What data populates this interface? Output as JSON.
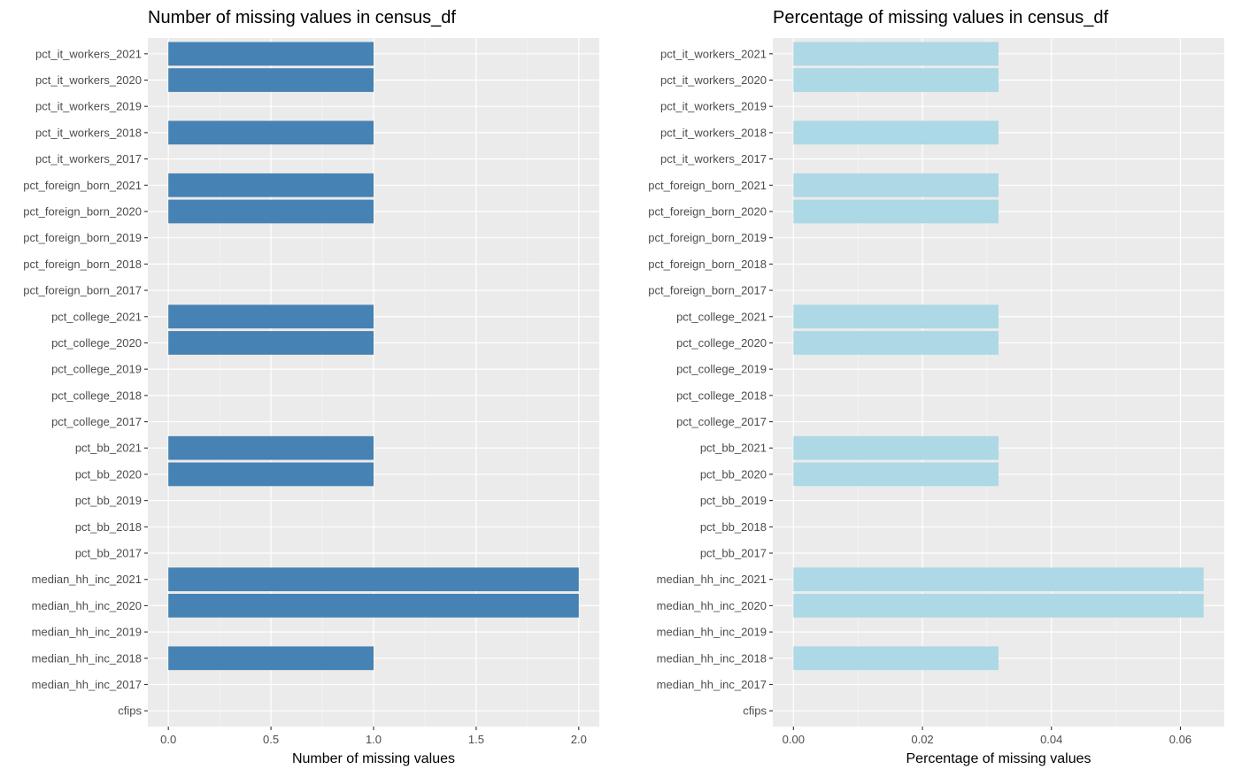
{
  "chart_data": [
    {
      "type": "bar",
      "orientation": "horizontal",
      "title": "Number of missing values in census_df",
      "xlabel": "Number of missing values",
      "ylabel": "",
      "xlim": [
        -0.1,
        2.1
      ],
      "xticks": [
        0.0,
        0.5,
        1.0,
        1.5,
        2.0
      ],
      "xtick_labels": [
        "0.0",
        "0.5",
        "1.0",
        "1.5",
        "2.0"
      ],
      "bar_color": "#4682b4",
      "categories": [
        "pct_it_workers_2021",
        "pct_it_workers_2020",
        "pct_it_workers_2019",
        "pct_it_workers_2018",
        "pct_it_workers_2017",
        "pct_foreign_born_2021",
        "pct_foreign_born_2020",
        "pct_foreign_born_2019",
        "pct_foreign_born_2018",
        "pct_foreign_born_2017",
        "pct_college_2021",
        "pct_college_2020",
        "pct_college_2019",
        "pct_college_2018",
        "pct_college_2017",
        "pct_bb_2021",
        "pct_bb_2020",
        "pct_bb_2019",
        "pct_bb_2018",
        "pct_bb_2017",
        "median_hh_inc_2021",
        "median_hh_inc_2020",
        "median_hh_inc_2019",
        "median_hh_inc_2018",
        "median_hh_inc_2017",
        "cfips"
      ],
      "values": [
        1,
        1,
        0,
        1,
        0,
        1,
        1,
        0,
        0,
        0,
        1,
        1,
        0,
        0,
        0,
        1,
        1,
        0,
        0,
        0,
        2,
        2,
        0,
        1,
        0,
        0
      ],
      "grid": true
    },
    {
      "type": "bar",
      "orientation": "horizontal",
      "title": "Percentage of missing values in census_df",
      "xlabel": "Percentage of missing values",
      "ylabel": "",
      "xlim": [
        -0.0032,
        0.0668
      ],
      "xticks": [
        0.0,
        0.02,
        0.04,
        0.06
      ],
      "xtick_labels": [
        "0.00",
        "0.02",
        "0.04",
        "0.06"
      ],
      "bar_color": "#add8e6",
      "categories": [
        "pct_it_workers_2021",
        "pct_it_workers_2020",
        "pct_it_workers_2019",
        "pct_it_workers_2018",
        "pct_it_workers_2017",
        "pct_foreign_born_2021",
        "pct_foreign_born_2020",
        "pct_foreign_born_2019",
        "pct_foreign_born_2018",
        "pct_foreign_born_2017",
        "pct_college_2021",
        "pct_college_2020",
        "pct_college_2019",
        "pct_college_2018",
        "pct_college_2017",
        "pct_bb_2021",
        "pct_bb_2020",
        "pct_bb_2019",
        "pct_bb_2018",
        "pct_bb_2017",
        "median_hh_inc_2021",
        "median_hh_inc_2020",
        "median_hh_inc_2019",
        "median_hh_inc_2018",
        "median_hh_inc_2017",
        "cfips"
      ],
      "values": [
        0.0318,
        0.0318,
        0,
        0.0318,
        0,
        0.0318,
        0.0318,
        0,
        0,
        0,
        0.0318,
        0.0318,
        0,
        0,
        0,
        0.0318,
        0.0318,
        0,
        0,
        0,
        0.0636,
        0.0636,
        0,
        0.0318,
        0,
        0
      ],
      "grid": true
    }
  ]
}
